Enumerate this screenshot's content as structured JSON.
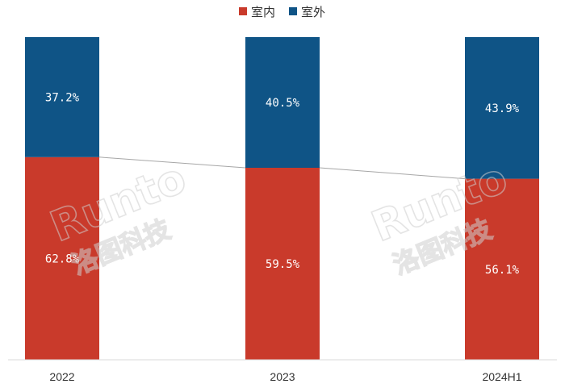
{
  "chart_data": {
    "type": "bar",
    "stacked": true,
    "percent": true,
    "categories": [
      "2022",
      "2023",
      "2024H1"
    ],
    "series": [
      {
        "name": "室内",
        "values": [
          62.8,
          59.5,
          56.1
        ],
        "labels": [
          "62.8%",
          "59.5%",
          "56.1%"
        ],
        "color": "#c93a2b"
      },
      {
        "name": "室外",
        "values": [
          37.2,
          40.5,
          43.9
        ],
        "labels": [
          "37.2%",
          "40.5%",
          "43.9%"
        ],
        "color": "#0f5486"
      }
    ],
    "ylim": [
      0,
      100
    ],
    "grid": false,
    "legend_position": "top",
    "series_lines": true
  },
  "watermark": {
    "brand": "Runto",
    "chinese": "洛图科技",
    "color": "#cfcfcf"
  }
}
